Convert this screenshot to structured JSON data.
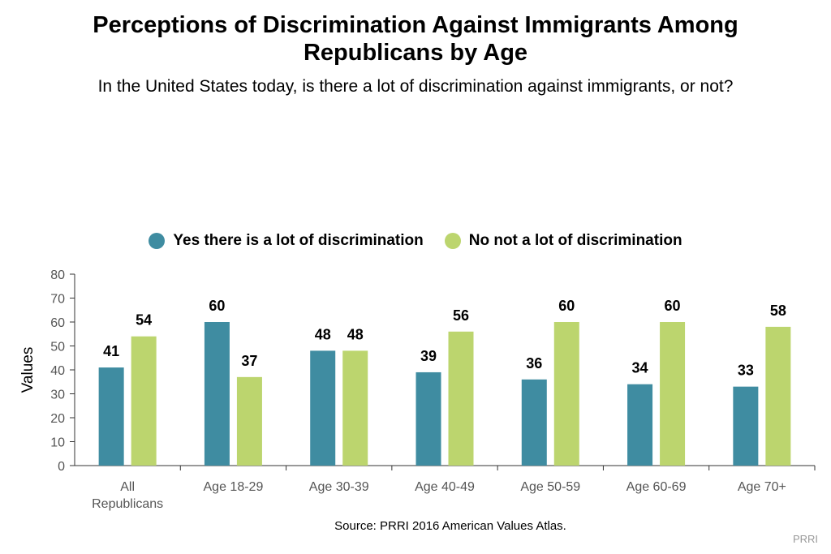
{
  "header": {
    "title": "Perceptions of Discrimination Against Immigrants Among Republicans by Age",
    "subtitle": "In the United States today, is there a lot of discrimination against immigrants, or not?"
  },
  "footer": {
    "source": "Source: PRRI 2016 American Values Atlas.",
    "credit": "PRRI"
  },
  "colors": {
    "yes": "#3f8ca1",
    "no": "#bcd56e"
  },
  "chart_data": {
    "type": "bar",
    "title": "Perceptions of Discrimination Against Immigrants Among Republicans by Age",
    "subtitle": "In the United States today, is there a lot of discrimination against immigrants, or not?",
    "xlabel": "",
    "ylabel": "Values",
    "ylim": [
      0,
      80
    ],
    "yticks": [
      0,
      10,
      20,
      30,
      40,
      50,
      60,
      70,
      80
    ],
    "grid": false,
    "legend_position": "top-center",
    "categories": [
      "All Republicans",
      "Age 18-29",
      "Age 30-39",
      "Age 40-49",
      "Age 50-59",
      "Age 60-69",
      "Age 70+"
    ],
    "series": [
      {
        "name": "Yes there is a lot of discrimination",
        "color": "#3f8ca1",
        "values": [
          41,
          60,
          48,
          39,
          36,
          34,
          33
        ]
      },
      {
        "name": "No not a lot of discrimination",
        "color": "#bcd56e",
        "values": [
          54,
          37,
          48,
          56,
          60,
          60,
          58
        ]
      }
    ]
  }
}
